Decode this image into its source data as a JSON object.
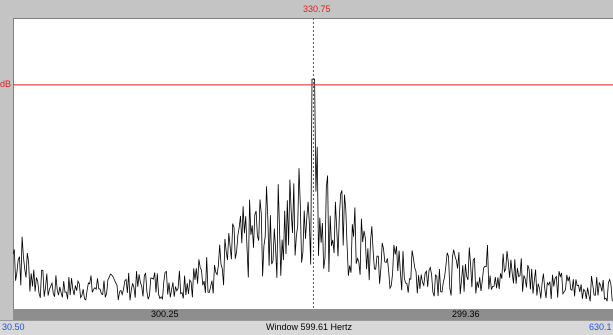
{
  "cursor": {
    "frequency_label": "330.75",
    "level_label": "dB"
  },
  "selection": {
    "left_label": "300.25",
    "right_label": "299.36"
  },
  "footer": {
    "start_label": "30.50",
    "window_label": "Window 599.61 Hertz",
    "end_label": "630.1"
  },
  "colors": {
    "cursor": "#e02020",
    "signal": "#000000",
    "footer_range": "#2255dd"
  },
  "chart_data": {
    "type": "line",
    "title": "",
    "xlabel": "",
    "ylabel": "",
    "x_range": [
      30.5,
      630.11
    ],
    "cursor_x": 330.75,
    "cursor_level_fraction": 0.77,
    "peak_level_fraction": 0.79,
    "grid": false
  }
}
